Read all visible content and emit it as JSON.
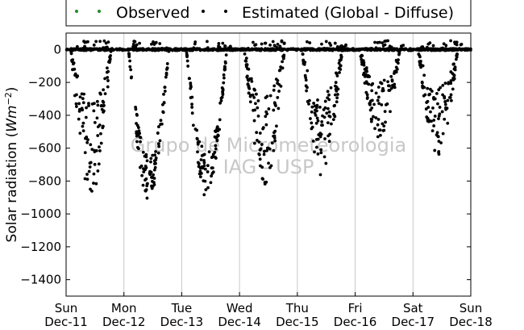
{
  "chart_data": {
    "type": "scatter",
    "ylabel_prefix": "Solar radiation (",
    "ylabel_unit": "Wm",
    "ylabel_exp": "−2",
    "ylabel_suffix": ")",
    "ylim": [
      -1500,
      100
    ],
    "xlim_days": [
      0,
      7
    ],
    "yticks": [
      0,
      -200,
      -400,
      -600,
      -800,
      -1000,
      -1200,
      -1400
    ],
    "xticks": [
      {
        "day": "Sun",
        "date": "Dec-11"
      },
      {
        "day": "Mon",
        "date": "Dec-12"
      },
      {
        "day": "Tue",
        "date": "Dec-13"
      },
      {
        "day": "Wed",
        "date": "Dec-14"
      },
      {
        "day": "Thu",
        "date": "Dec-15"
      },
      {
        "day": "Fri",
        "date": "Dec-16"
      },
      {
        "day": "Sat",
        "date": "Dec-17"
      },
      {
        "day": "Sun",
        "date": "Dec-18"
      }
    ],
    "grid": "vertical",
    "legend_position": "top",
    "series": [
      {
        "name": "Observed",
        "color": "#228B22",
        "values": []
      },
      {
        "name": "Estimated (Global - Diffuse)",
        "color": "#000000",
        "daily_min_estimate": [
          -900,
          -930,
          -900,
          -820,
          -780,
          -560,
          -640
        ]
      }
    ],
    "watermark": [
      "Grupo de Micrometeorologia",
      "IAG - USP"
    ]
  }
}
